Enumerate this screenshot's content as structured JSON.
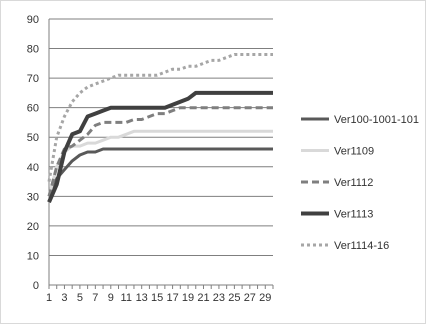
{
  "chart_data": {
    "type": "line",
    "x": [
      1,
      2,
      3,
      4,
      5,
      6,
      7,
      8,
      9,
      10,
      11,
      12,
      13,
      14,
      15,
      16,
      17,
      18,
      19,
      20,
      21,
      22,
      23,
      24,
      25,
      26,
      27,
      28,
      29,
      30
    ],
    "x_tick_labels": [
      "1",
      "3",
      "5",
      "7",
      "9",
      "11",
      "13",
      "15",
      "17",
      "19",
      "21",
      "23",
      "25",
      "27",
      "29"
    ],
    "y_tick_labels": [
      "0",
      "10",
      "20",
      "30",
      "40",
      "50",
      "60",
      "70",
      "80",
      "90"
    ],
    "ylim": [
      0,
      90
    ],
    "y_step": 10,
    "grid": true,
    "legend_position": "right",
    "series": [
      {
        "name": "Ver100-1001-101",
        "color": "#595959",
        "dash": "solid",
        "width": 3,
        "values": [
          30,
          36,
          39,
          42,
          44,
          45,
          45,
          46,
          46,
          46,
          46,
          46,
          46,
          46,
          46,
          46,
          46,
          46,
          46,
          46,
          46,
          46,
          46,
          46,
          46,
          46,
          46,
          46,
          46,
          46
        ]
      },
      {
        "name": "Ver1109",
        "color": "#d9d9d9",
        "dash": "solid",
        "width": 3,
        "values": [
          30,
          40,
          45,
          47,
          47,
          48,
          48,
          49,
          50,
          50,
          51,
          52,
          52,
          52,
          52,
          52,
          52,
          52,
          52,
          52,
          52,
          52,
          52,
          52,
          52,
          52,
          52,
          52,
          52,
          52
        ]
      },
      {
        "name": "Ver1112",
        "color": "#7f7f7f",
        "dash": "dashed",
        "width": 3,
        "values": [
          30,
          40,
          46,
          47,
          49,
          51,
          54,
          55,
          55,
          55,
          55,
          56,
          56,
          57,
          58,
          58,
          59,
          60,
          60,
          60,
          60,
          60,
          60,
          60,
          60,
          60,
          60,
          60,
          60,
          60
        ]
      },
      {
        "name": "Ver1113",
        "color": "#404040",
        "dash": "solid",
        "width": 4,
        "values": [
          28,
          34,
          45,
          51,
          52,
          57,
          58,
          59,
          60,
          60,
          60,
          60,
          60,
          60,
          60,
          60,
          61,
          62,
          63,
          65,
          65,
          65,
          65,
          65,
          65,
          65,
          65,
          65,
          65,
          65
        ]
      },
      {
        "name": "Ver1114-16",
        "color": "#a6a6a6",
        "dash": "dotted",
        "width": 3,
        "values": [
          35,
          50,
          57,
          62,
          65,
          67,
          68,
          69,
          70,
          71,
          71,
          71,
          71,
          71,
          71,
          72,
          73,
          73,
          74,
          74,
          75,
          76,
          76,
          77,
          78,
          78,
          78,
          78,
          78,
          78
        ]
      }
    ]
  }
}
